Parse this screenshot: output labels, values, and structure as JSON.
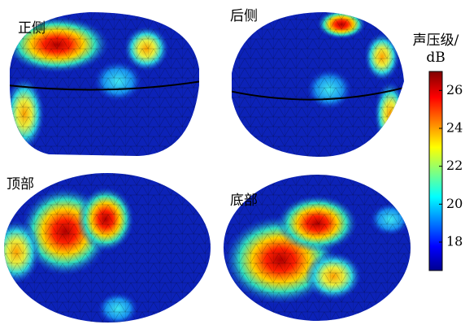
{
  "panels": [
    {
      "label": "正侧"
    },
    {
      "label": "后侧"
    },
    {
      "label": "顶部"
    },
    {
      "label": "底部"
    }
  ],
  "colorbar": {
    "title_lines": [
      "声压级/",
      "dB"
    ],
    "lim": [
      16.5,
      27
    ],
    "ticks": [
      18,
      20,
      22,
      24,
      26
    ]
  }
}
